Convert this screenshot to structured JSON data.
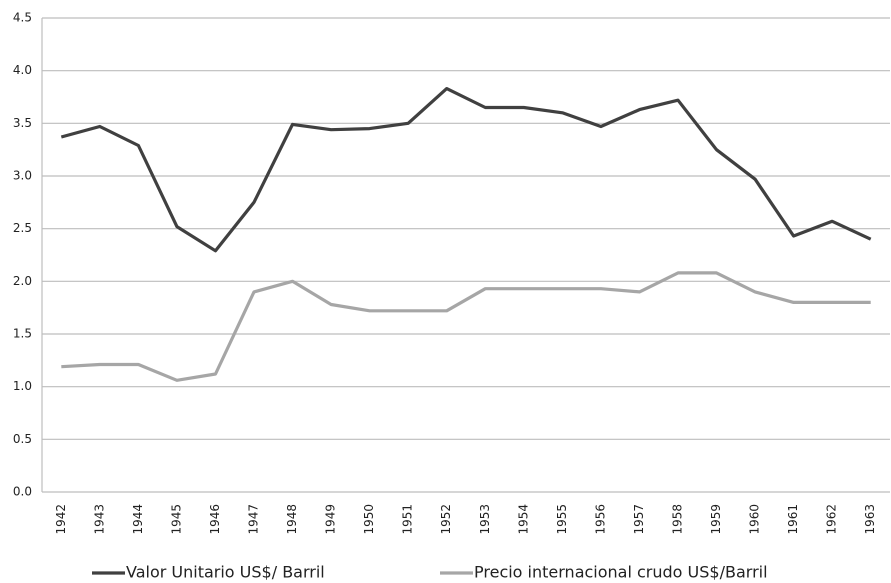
{
  "chart_data": {
    "type": "line",
    "categories": [
      "1942",
      "1943",
      "1944",
      "1945",
      "1946",
      "1947",
      "1948",
      "1949",
      "1950",
      "1951",
      "1952",
      "1953",
      "1954",
      "1955",
      "1956",
      "1957",
      "1958",
      "1959",
      "1960",
      "1961",
      "1962",
      "1963"
    ],
    "series": [
      {
        "name": "Valor Unitario US$/ Barril",
        "color": "#404040",
        "values": [
          3.37,
          3.47,
          3.29,
          2.52,
          2.29,
          2.75,
          3.49,
          3.44,
          3.45,
          3.5,
          3.83,
          3.65,
          3.65,
          3.6,
          3.47,
          3.63,
          3.72,
          3.25,
          2.97,
          2.43,
          2.57,
          2.4
        ]
      },
      {
        "name": "Precio internacional crudo US$/Barril",
        "color": "#a6a6a6",
        "values": [
          1.19,
          1.21,
          1.21,
          1.06,
          1.12,
          1.9,
          2.0,
          1.78,
          1.72,
          1.72,
          1.72,
          1.93,
          1.93,
          1.93,
          1.93,
          1.9,
          2.08,
          2.08,
          1.9,
          1.8,
          1.8,
          1.8
        ]
      }
    ],
    "ylim": [
      0,
      4.5
    ],
    "yticks": [
      {
        "value": 0,
        "label": "0.0"
      },
      0.5,
      {
        "value": 1,
        "label": "1.0"
      },
      1.5,
      {
        "value": 2,
        "label": "2.0"
      },
      2.5,
      {
        "value": 3,
        "label": "3.0"
      },
      3.5,
      {
        "value": 4,
        "label": "4.0"
      },
      4.5
    ],
    "grid": true,
    "legend": "bottom"
  }
}
